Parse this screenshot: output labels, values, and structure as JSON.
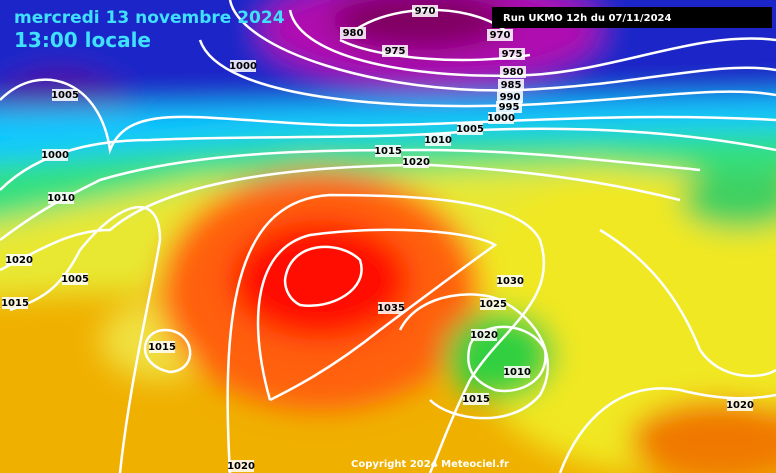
{
  "header": {
    "date": "mercredi 13 novembre 2024",
    "time": "13:00 locale",
    "run": "Run UKMO 12h du 07/11/2024"
  },
  "isobar_labels": [
    970,
    980,
    970,
    975,
    975,
    980,
    985,
    990,
    995,
    1000,
    1000,
    1005,
    1000,
    1005,
    1010,
    1015,
    1020,
    1010,
    1020,
    1005,
    1015,
    1015,
    1030,
    1025,
    1035,
    1020,
    1010,
    1015,
    1020,
    1020
  ],
  "footer": "Copyright 2024 Meteociel.fr"
}
